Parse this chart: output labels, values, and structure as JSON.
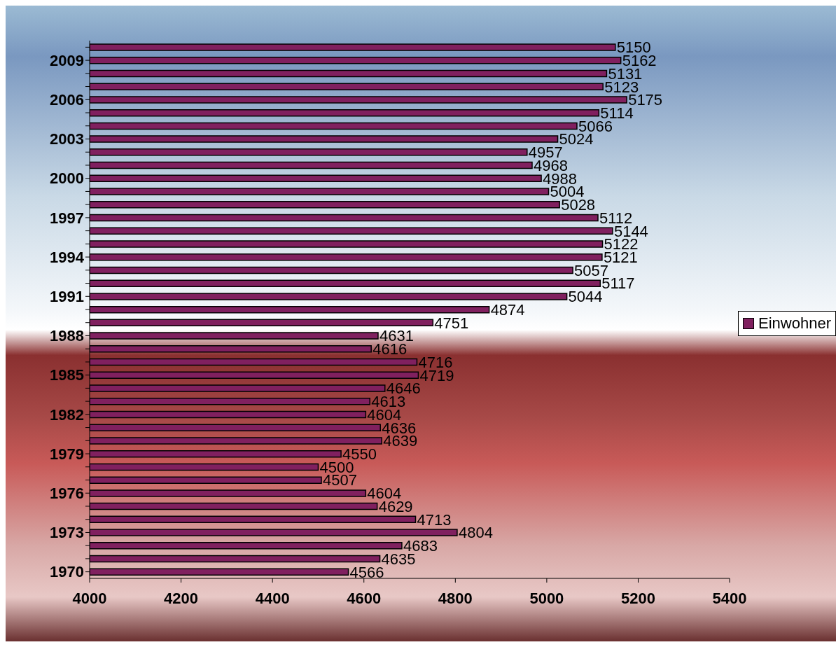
{
  "chart_data": {
    "type": "bar",
    "orientation": "horizontal",
    "categories": [
      null,
      "2009",
      null,
      null,
      "2006",
      null,
      null,
      "2003",
      null,
      null,
      "2000",
      null,
      null,
      "1997",
      null,
      null,
      "1994",
      null,
      null,
      "1991",
      null,
      null,
      "1988",
      null,
      null,
      "1985",
      null,
      null,
      "1982",
      null,
      null,
      "1979",
      null,
      null,
      "1976",
      null,
      null,
      "1973",
      null,
      null,
      "1970"
    ],
    "series": [
      {
        "name": "Einwohner",
        "color": "#80205f",
        "values": [
          5150,
          5162,
          5131,
          5123,
          5175,
          5114,
          5066,
          5024,
          4957,
          4968,
          4988,
          5004,
          5028,
          5112,
          5144,
          5122,
          5121,
          5057,
          5117,
          5044,
          4874,
          4751,
          4631,
          4616,
          4716,
          4719,
          4646,
          4613,
          4604,
          4636,
          4639,
          4550,
          4500,
          4507,
          4604,
          4629,
          4713,
          4804,
          4683,
          4635,
          4566
        ]
      }
    ],
    "xlim": [
      4000,
      5400
    ],
    "xticks": [
      4000,
      4200,
      4400,
      4600,
      4800,
      5000,
      5200,
      5400
    ],
    "data_labels": true,
    "legend": "right",
    "grid": false
  }
}
